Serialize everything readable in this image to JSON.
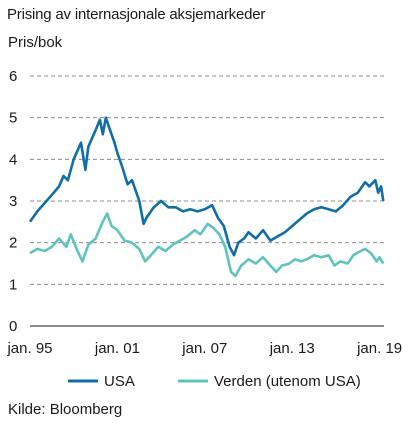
{
  "chart_data": {
    "type": "line",
    "title": "Prising av internasjonale aksjemarkeder",
    "ylabel": "Pris/bok",
    "xlabel": "",
    "source": "Kilde: Bloomberg",
    "x_ticks": [
      {
        "label": "jan. 95",
        "year": 1995
      },
      {
        "label": "jan. 01",
        "year": 2001
      },
      {
        "label": "jan. 07",
        "year": 2007
      },
      {
        "label": "jan. 13",
        "year": 2013
      },
      {
        "label": "jan. 19",
        "year": 2019
      }
    ],
    "y_ticks": [
      0,
      1,
      2,
      3,
      4,
      5,
      6
    ],
    "ylim": [
      0,
      6
    ],
    "xlim": [
      1995,
      2019.3
    ],
    "grid": true,
    "legend_position": "bottom",
    "series": [
      {
        "name": "USA",
        "color": "#0f6ea8",
        "points": [
          [
            1995.0,
            2.5
          ],
          [
            1995.5,
            2.75
          ],
          [
            1996.0,
            2.95
          ],
          [
            1996.5,
            3.15
          ],
          [
            1997.0,
            3.35
          ],
          [
            1997.3,
            3.6
          ],
          [
            1997.6,
            3.5
          ],
          [
            1998.0,
            4.0
          ],
          [
            1998.5,
            4.4
          ],
          [
            1998.8,
            3.75
          ],
          [
            1999.0,
            4.3
          ],
          [
            1999.5,
            4.7
          ],
          [
            1999.8,
            4.95
          ],
          [
            2000.0,
            4.6
          ],
          [
            2000.2,
            5.0
          ],
          [
            2000.5,
            4.7
          ],
          [
            2000.8,
            4.4
          ],
          [
            2001.0,
            4.15
          ],
          [
            2001.3,
            3.85
          ],
          [
            2001.7,
            3.4
          ],
          [
            2002.0,
            3.5
          ],
          [
            2002.5,
            3.0
          ],
          [
            2002.8,
            2.45
          ],
          [
            2003.0,
            2.6
          ],
          [
            2003.5,
            2.85
          ],
          [
            2004.0,
            3.0
          ],
          [
            2004.5,
            2.85
          ],
          [
            2005.0,
            2.85
          ],
          [
            2005.5,
            2.75
          ],
          [
            2006.0,
            2.8
          ],
          [
            2006.5,
            2.75
          ],
          [
            2007.0,
            2.8
          ],
          [
            2007.5,
            2.9
          ],
          [
            2007.9,
            2.6
          ],
          [
            2008.3,
            2.4
          ],
          [
            2008.7,
            1.9
          ],
          [
            2009.0,
            1.7
          ],
          [
            2009.3,
            2.0
          ],
          [
            2009.7,
            2.1
          ],
          [
            2010.0,
            2.25
          ],
          [
            2010.5,
            2.1
          ],
          [
            2011.0,
            2.3
          ],
          [
            2011.5,
            2.05
          ],
          [
            2012.0,
            2.15
          ],
          [
            2012.5,
            2.25
          ],
          [
            2013.0,
            2.4
          ],
          [
            2013.5,
            2.55
          ],
          [
            2014.0,
            2.7
          ],
          [
            2014.5,
            2.8
          ],
          [
            2015.0,
            2.85
          ],
          [
            2015.5,
            2.8
          ],
          [
            2016.0,
            2.75
          ],
          [
            2016.5,
            2.9
          ],
          [
            2017.0,
            3.1
          ],
          [
            2017.5,
            3.2
          ],
          [
            2018.0,
            3.45
          ],
          [
            2018.3,
            3.35
          ],
          [
            2018.7,
            3.5
          ],
          [
            2018.9,
            3.2
          ],
          [
            2019.1,
            3.35
          ],
          [
            2019.25,
            3.0
          ]
        ]
      },
      {
        "name": "Verden (utenom USA)",
        "color": "#5ec4bb",
        "points": [
          [
            1995.0,
            1.75
          ],
          [
            1995.5,
            1.85
          ],
          [
            1996.0,
            1.8
          ],
          [
            1996.5,
            1.9
          ],
          [
            1997.0,
            2.1
          ],
          [
            1997.5,
            1.9
          ],
          [
            1997.8,
            2.2
          ],
          [
            1998.2,
            1.85
          ],
          [
            1998.6,
            1.55
          ],
          [
            1999.0,
            1.95
          ],
          [
            1999.5,
            2.1
          ],
          [
            2000.0,
            2.5
          ],
          [
            2000.3,
            2.7
          ],
          [
            2000.6,
            2.4
          ],
          [
            2001.0,
            2.3
          ],
          [
            2001.5,
            2.05
          ],
          [
            2002.0,
            2.0
          ],
          [
            2002.5,
            1.85
          ],
          [
            2002.9,
            1.55
          ],
          [
            2003.3,
            1.7
          ],
          [
            2003.8,
            1.9
          ],
          [
            2004.3,
            1.8
          ],
          [
            2004.8,
            1.95
          ],
          [
            2005.3,
            2.05
          ],
          [
            2005.8,
            2.15
          ],
          [
            2006.3,
            2.3
          ],
          [
            2006.7,
            2.2
          ],
          [
            2007.2,
            2.45
          ],
          [
            2007.6,
            2.35
          ],
          [
            2008.0,
            2.2
          ],
          [
            2008.4,
            1.9
          ],
          [
            2008.8,
            1.3
          ],
          [
            2009.1,
            1.2
          ],
          [
            2009.5,
            1.45
          ],
          [
            2010.0,
            1.6
          ],
          [
            2010.5,
            1.5
          ],
          [
            2011.0,
            1.65
          ],
          [
            2011.5,
            1.45
          ],
          [
            2011.9,
            1.3
          ],
          [
            2012.3,
            1.45
          ],
          [
            2012.8,
            1.5
          ],
          [
            2013.2,
            1.6
          ],
          [
            2013.6,
            1.55
          ],
          [
            2014.0,
            1.6
          ],
          [
            2014.5,
            1.7
          ],
          [
            2015.0,
            1.65
          ],
          [
            2015.5,
            1.7
          ],
          [
            2015.9,
            1.45
          ],
          [
            2016.3,
            1.55
          ],
          [
            2016.8,
            1.5
          ],
          [
            2017.2,
            1.7
          ],
          [
            2017.7,
            1.8
          ],
          [
            2018.0,
            1.85
          ],
          [
            2018.4,
            1.75
          ],
          [
            2018.8,
            1.55
          ],
          [
            2019.0,
            1.65
          ],
          [
            2019.25,
            1.5
          ]
        ]
      }
    ]
  }
}
